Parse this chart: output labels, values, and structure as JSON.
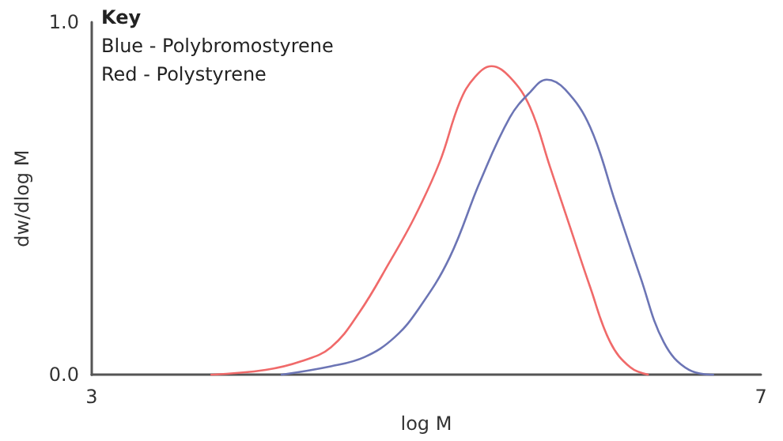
{
  "chart_data": {
    "type": "line",
    "xlabel": "log M",
    "ylabel": "dw/dlog M",
    "annotations": [
      "Key",
      "Blue - Polybromostyrene",
      "Red - Polystyrene"
    ],
    "xlim": [
      3,
      7
    ],
    "xticks": [
      3,
      7
    ],
    "ylim": [
      0,
      1
    ],
    "yticks": [
      {
        "value": 0,
        "label": "0.0"
      },
      {
        "value": 1,
        "label": "1.0"
      }
    ],
    "grid": false,
    "marker": "none",
    "line_style": "solid",
    "series": [
      {
        "color": "#f06a6a",
        "x": [
          3.71,
          4.04,
          4.25,
          4.43,
          4.6,
          4.78,
          4.93,
          5.08,
          5.2,
          5.29,
          5.39,
          5.5,
          5.62,
          5.74,
          5.86,
          5.98,
          6.1,
          6.22,
          6.33
        ],
        "values": [
          0,
          0.014,
          0.038,
          0.078,
          0.177,
          0.319,
          0.447,
          0.603,
          0.773,
          0.844,
          0.875,
          0.844,
          0.759,
          0.589,
          0.418,
          0.248,
          0.092,
          0.021,
          0
        ]
      },
      {
        "color": "#6c75b5",
        "x": [
          4.13,
          4.43,
          4.63,
          4.81,
          4.96,
          5.14,
          5.32,
          5.5,
          5.62,
          5.72,
          5.83,
          5.98,
          6.13,
          6.28,
          6.42,
          6.57,
          6.72
        ],
        "values": [
          0,
          0.024,
          0.05,
          0.106,
          0.191,
          0.333,
          0.546,
          0.73,
          0.801,
          0.837,
          0.809,
          0.702,
          0.489,
          0.277,
          0.092,
          0.014,
          0
        ]
      }
    ]
  }
}
